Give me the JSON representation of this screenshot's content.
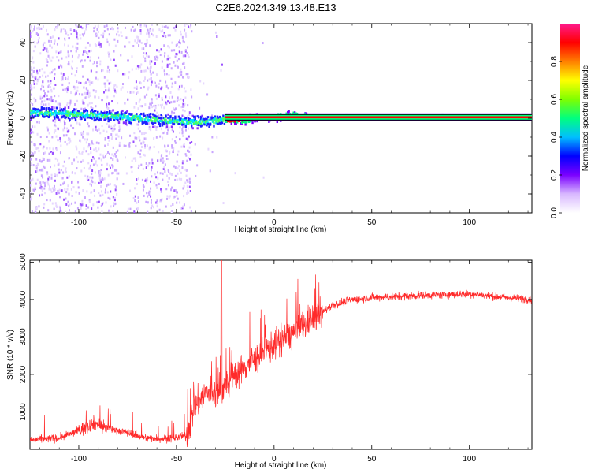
{
  "title": "C2E6.2024.349.13.48.E13",
  "spectrogram": {
    "xlabel": "Height of straight line (km)",
    "ylabel": "Frequency (Hz)",
    "xlim": [
      -125,
      132
    ],
    "ylim": [
      -50,
      50
    ],
    "xticks": [
      -100,
      -50,
      0,
      50,
      100
    ],
    "yticks": [
      -40,
      -20,
      0,
      20,
      40
    ],
    "colorbar": {
      "label": "Normalized spectral amplitude",
      "range": [
        0,
        1
      ],
      "ticks": [
        0.0,
        0.2,
        0.4,
        0.6,
        0.8
      ],
      "tick_labels": [
        "0.0",
        "0.2",
        "0.4",
        "0.6",
        "0.8"
      ]
    },
    "ridge_center_hz": [
      {
        "x": -125,
        "y": 3
      },
      {
        "x": -110,
        "y": 2.5
      },
      {
        "x": -100,
        "y": 2
      },
      {
        "x": -80,
        "y": 1
      },
      {
        "x": -60,
        "y": -1
      },
      {
        "x": -45,
        "y": -2
      },
      {
        "x": -35,
        "y": -2
      },
      {
        "x": -27,
        "y": -1
      },
      {
        "x": -15,
        "y": -1
      },
      {
        "x": -10,
        "y": 0
      },
      {
        "x": 0,
        "y": 0.5
      },
      {
        "x": 10,
        "y": 1.5
      },
      {
        "x": 20,
        "y": 0.5
      },
      {
        "x": 132,
        "y": 0.5
      }
    ],
    "stable_tone": {
      "start_km": -25,
      "end_km": 132,
      "frequency_hz": 0.5
    }
  },
  "snr": {
    "xlabel": "Height of straight line (km)",
    "ylabel": "SNR (10 * v/v)",
    "xlim": [
      -125,
      132
    ],
    "ylim": [
      0,
      5050
    ],
    "xticks": [
      -100,
      -50,
      0,
      50,
      100
    ],
    "yticks": [
      1000,
      2000,
      3000,
      4000,
      5000
    ],
    "line_color": "#ff2a2a",
    "trend": [
      {
        "x": -125,
        "y": 250
      },
      {
        "x": -110,
        "y": 300
      },
      {
        "x": -100,
        "y": 500
      },
      {
        "x": -92,
        "y": 700
      },
      {
        "x": -85,
        "y": 550
      },
      {
        "x": -75,
        "y": 450
      },
      {
        "x": -65,
        "y": 300
      },
      {
        "x": -55,
        "y": 280
      },
      {
        "x": -45,
        "y": 350
      },
      {
        "x": -40,
        "y": 1200
      },
      {
        "x": -35,
        "y": 1500
      },
      {
        "x": -28,
        "y": 1500
      },
      {
        "x": -20,
        "y": 2000
      },
      {
        "x": -10,
        "y": 2400
      },
      {
        "x": 0,
        "y": 2800
      },
      {
        "x": 10,
        "y": 3100
      },
      {
        "x": 20,
        "y": 3500
      },
      {
        "x": 30,
        "y": 3850
      },
      {
        "x": 40,
        "y": 4000
      },
      {
        "x": 50,
        "y": 4050
      },
      {
        "x": 70,
        "y": 4100
      },
      {
        "x": 100,
        "y": 4150
      },
      {
        "x": 120,
        "y": 4050
      },
      {
        "x": 132,
        "y": 4000
      }
    ],
    "spike": {
      "x": -27,
      "y": 5050
    }
  },
  "colors": {
    "colormap": [
      "#ffffff",
      "#d8b8ff",
      "#7a00ff",
      "#0000ff",
      "#00bfff",
      "#00ff7f",
      "#7fff00",
      "#ffff00",
      "#ff7f00",
      "#ff0000",
      "#ff1a8c"
    ]
  }
}
